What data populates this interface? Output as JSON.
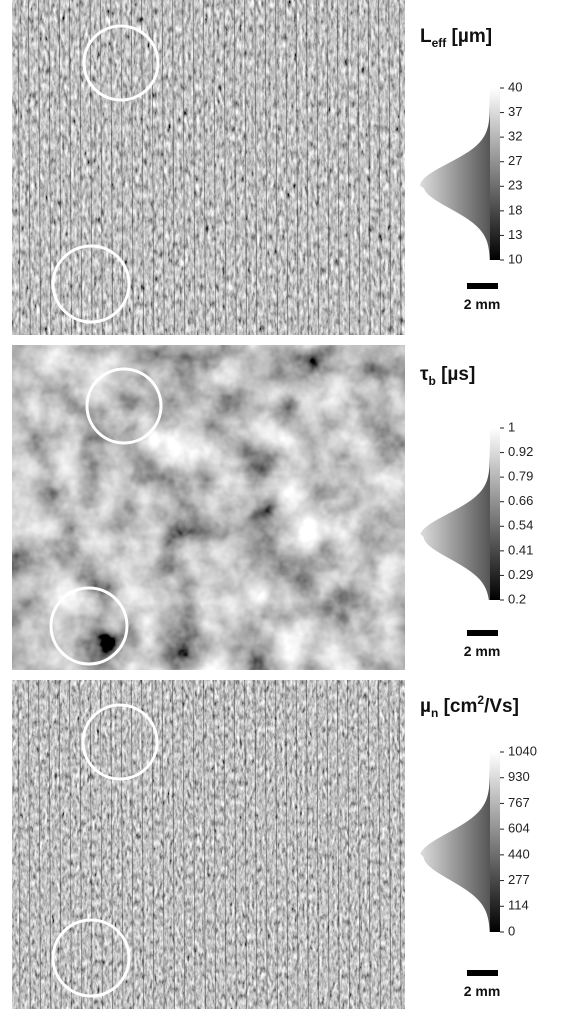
{
  "panels": [
    {
      "title": {
        "symbol": "L",
        "subscript": "eff",
        "unit": " [µm]"
      },
      "ticks": [
        "40",
        "37",
        "32",
        "27",
        "23",
        "18",
        "13",
        "10"
      ],
      "scale_bar": "2 mm"
    },
    {
      "title": {
        "symbol": "τ",
        "subscript": "b",
        "unit": " [µs]"
      },
      "ticks": [
        "1",
        "0.92",
        "0.79",
        "0.66",
        "0.54",
        "0.41",
        "0.29",
        "0.2"
      ],
      "scale_bar": "2 mm"
    },
    {
      "title": {
        "symbol": "µ",
        "subscript": "n",
        "unit": " [cm",
        "superscript": "2",
        "unit_end": "/Vs]"
      },
      "ticks": [
        "1040",
        "930",
        "767",
        "604",
        "440",
        "277",
        "114",
        "0"
      ],
      "scale_bar": "2 mm"
    }
  ]
}
